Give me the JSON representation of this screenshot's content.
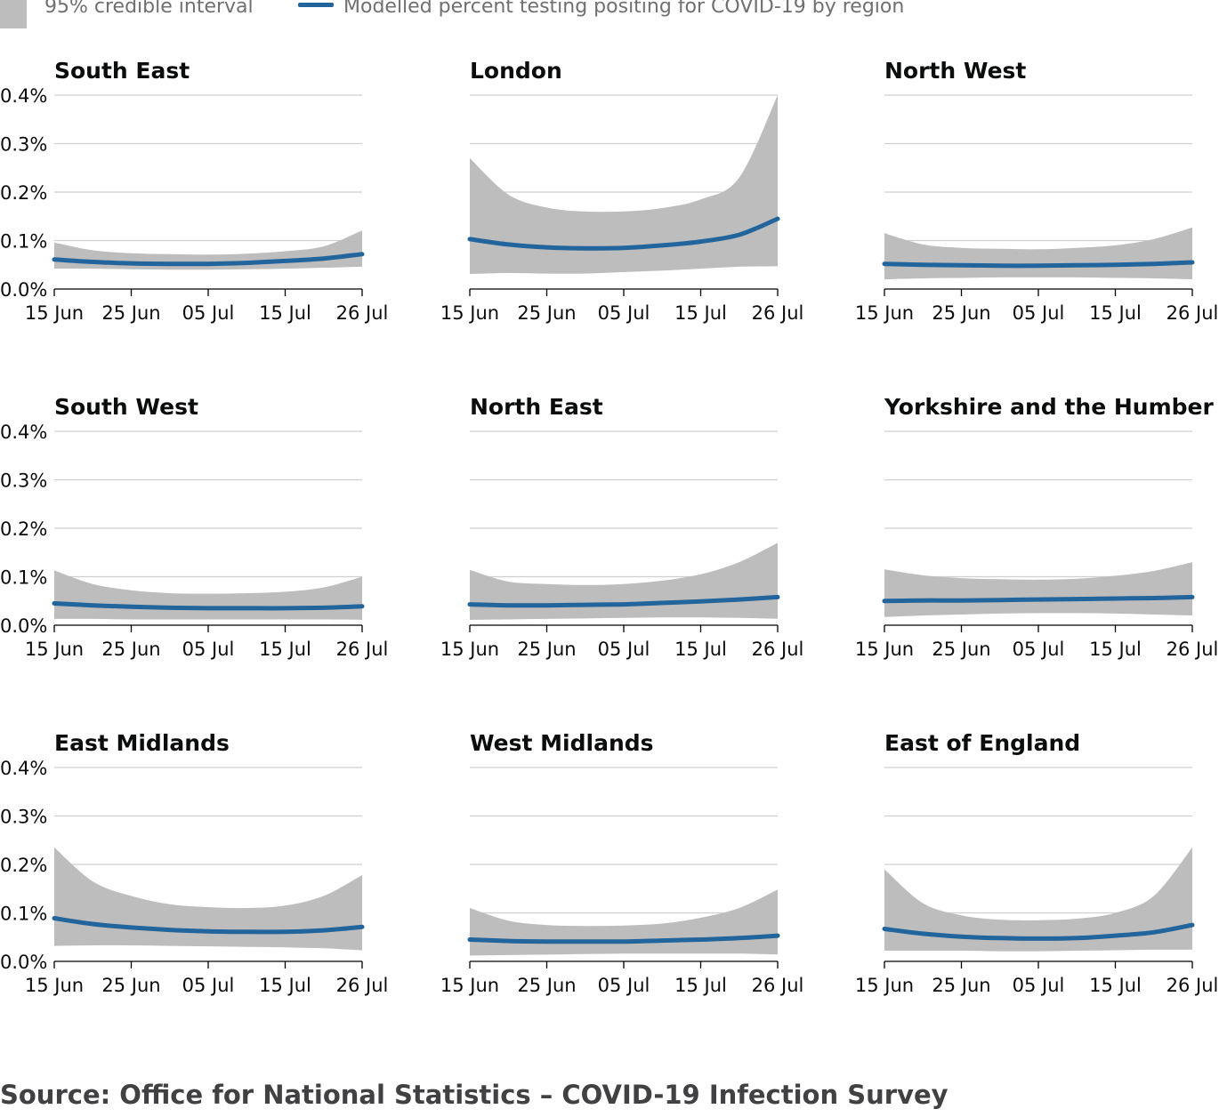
{
  "legend": {
    "interval_label": "95% credible interval",
    "line_label": "Modelled percent testing positing for COVID-19 by region"
  },
  "colors": {
    "interval": "#bdbdbd",
    "line": "#22649c",
    "grid": "#cfcfcf",
    "axis": "#000000"
  },
  "source": "Source: Office for National Statistics – COVID-19 Infection Survey",
  "chart_data": [
    {
      "type": "area",
      "title": "South East",
      "x": [
        "15 Jun",
        "20 Jun",
        "25 Jun",
        "30 Jun",
        "05 Jul",
        "10 Jul",
        "15 Jul",
        "20 Jul",
        "26 Jul"
      ],
      "series": [
        {
          "name": "Modelled percent testing positing for COVID-19 by region",
          "values": [
            0.061,
            0.056,
            0.053,
            0.052,
            0.052,
            0.054,
            0.058,
            0.063,
            0.072
          ]
        },
        {
          "name": "95% credible interval",
          "lower": [
            0.042,
            0.042,
            0.041,
            0.04,
            0.04,
            0.041,
            0.042,
            0.044,
            0.046
          ],
          "upper": [
            0.096,
            0.08,
            0.074,
            0.072,
            0.071,
            0.073,
            0.078,
            0.088,
            0.121
          ]
        }
      ],
      "xticks": [
        "15 Jun",
        "25 Jun",
        "05 Jul",
        "15 Jul",
        "26 Jul"
      ],
      "yticks": [
        "0.0%",
        "0.1%",
        "0.2%",
        "0.3%",
        "0.4%"
      ],
      "ylim": [
        0,
        0.4
      ],
      "grid": true
    },
    {
      "type": "area",
      "title": "London",
      "x": [
        "15 Jun",
        "20 Jun",
        "25 Jun",
        "30 Jun",
        "05 Jul",
        "10 Jul",
        "15 Jul",
        "20 Jul",
        "26 Jul"
      ],
      "series": [
        {
          "name": "Modelled percent testing positing for COVID-19 by region",
          "values": [
            0.103,
            0.092,
            0.086,
            0.084,
            0.085,
            0.09,
            0.098,
            0.112,
            0.145
          ]
        },
        {
          "name": "95% credible interval",
          "lower": [
            0.031,
            0.033,
            0.032,
            0.032,
            0.035,
            0.038,
            0.042,
            0.046,
            0.047
          ],
          "upper": [
            0.27,
            0.195,
            0.168,
            0.16,
            0.16,
            0.167,
            0.185,
            0.23,
            0.4
          ]
        }
      ],
      "xticks": [
        "15 Jun",
        "25 Jun",
        "05 Jul",
        "15 Jul",
        "26 Jul"
      ],
      "yticks": [],
      "ylim": [
        0,
        0.4
      ],
      "grid": true
    },
    {
      "type": "area",
      "title": "North West",
      "x": [
        "15 Jun",
        "20 Jun",
        "25 Jun",
        "30 Jun",
        "05 Jul",
        "10 Jul",
        "15 Jul",
        "20 Jul",
        "26 Jul"
      ],
      "series": [
        {
          "name": "Modelled percent testing positing for COVID-19 by region",
          "values": [
            0.052,
            0.05,
            0.049,
            0.048,
            0.048,
            0.049,
            0.05,
            0.052,
            0.055
          ]
        },
        {
          "name": "95% credible interval",
          "lower": [
            0.02,
            0.022,
            0.023,
            0.024,
            0.024,
            0.024,
            0.023,
            0.022,
            0.02
          ],
          "upper": [
            0.115,
            0.092,
            0.085,
            0.083,
            0.082,
            0.085,
            0.09,
            0.103,
            0.127
          ]
        }
      ],
      "xticks": [
        "15 Jun",
        "25 Jun",
        "05 Jul",
        "15 Jul",
        "26 Jul"
      ],
      "yticks": [],
      "ylim": [
        0,
        0.4
      ],
      "grid": true
    },
    {
      "type": "area",
      "title": "South West",
      "x": [
        "15 Jun",
        "20 Jun",
        "25 Jun",
        "30 Jun",
        "05 Jul",
        "10 Jul",
        "15 Jul",
        "20 Jul",
        "26 Jul"
      ],
      "series": [
        {
          "name": "Modelled percent testing positing for COVID-19 by region",
          "values": [
            0.045,
            0.041,
            0.038,
            0.036,
            0.035,
            0.035,
            0.035,
            0.036,
            0.039
          ]
        },
        {
          "name": "95% credible interval",
          "lower": [
            0.013,
            0.013,
            0.012,
            0.012,
            0.012,
            0.012,
            0.012,
            0.012,
            0.011
          ],
          "upper": [
            0.113,
            0.085,
            0.072,
            0.066,
            0.065,
            0.066,
            0.069,
            0.078,
            0.1
          ]
        }
      ],
      "xticks": [
        "15 Jun",
        "25 Jun",
        "05 Jul",
        "15 Jul",
        "26 Jul"
      ],
      "yticks": [
        "0.0%",
        "0.1%",
        "0.2%",
        "0.3%",
        "0.4%"
      ],
      "ylim": [
        0,
        0.4
      ],
      "grid": true
    },
    {
      "type": "area",
      "title": "North East",
      "x": [
        "15 Jun",
        "20 Jun",
        "25 Jun",
        "30 Jun",
        "05 Jul",
        "10 Jul",
        "15 Jul",
        "20 Jul",
        "26 Jul"
      ],
      "series": [
        {
          "name": "Modelled percent testing positing for COVID-19 by region",
          "values": [
            0.043,
            0.041,
            0.041,
            0.042,
            0.043,
            0.046,
            0.049,
            0.053,
            0.058
          ]
        },
        {
          "name": "95% credible interval",
          "lower": [
            0.011,
            0.012,
            0.013,
            0.014,
            0.015,
            0.016,
            0.016,
            0.015,
            0.013
          ],
          "upper": [
            0.114,
            0.09,
            0.085,
            0.083,
            0.085,
            0.092,
            0.105,
            0.13,
            0.17
          ]
        }
      ],
      "xticks": [
        "15 Jun",
        "25 Jun",
        "05 Jul",
        "15 Jul",
        "26 Jul"
      ],
      "yticks": [],
      "ylim": [
        0,
        0.4
      ],
      "grid": true
    },
    {
      "type": "area",
      "title": "Yorkshire and the Humber",
      "x": [
        "15 Jun",
        "20 Jun",
        "25 Jun",
        "30 Jun",
        "05 Jul",
        "10 Jul",
        "15 Jul",
        "20 Jul",
        "26 Jul"
      ],
      "series": [
        {
          "name": "Modelled percent testing positing for COVID-19 by region",
          "values": [
            0.05,
            0.051,
            0.051,
            0.052,
            0.053,
            0.054,
            0.055,
            0.056,
            0.058
          ]
        },
        {
          "name": "95% credible interval",
          "lower": [
            0.017,
            0.02,
            0.022,
            0.024,
            0.025,
            0.025,
            0.024,
            0.022,
            0.02
          ],
          "upper": [
            0.115,
            0.103,
            0.097,
            0.095,
            0.094,
            0.096,
            0.102,
            0.112,
            0.13
          ]
        }
      ],
      "xticks": [
        "15 Jun",
        "25 Jun",
        "05 Jul",
        "15 Jul",
        "26 Jul"
      ],
      "yticks": [],
      "ylim": [
        0,
        0.4
      ],
      "grid": true
    },
    {
      "type": "area",
      "title": "East Midlands",
      "x": [
        "15 Jun",
        "20 Jun",
        "25 Jun",
        "30 Jun",
        "05 Jul",
        "10 Jul",
        "15 Jul",
        "20 Jul",
        "26 Jul"
      ],
      "series": [
        {
          "name": "Modelled percent testing positing for COVID-19 by region",
          "values": [
            0.089,
            0.077,
            0.07,
            0.065,
            0.062,
            0.061,
            0.061,
            0.064,
            0.071
          ]
        },
        {
          "name": "95% credible interval",
          "lower": [
            0.032,
            0.033,
            0.033,
            0.032,
            0.031,
            0.03,
            0.029,
            0.027,
            0.023
          ],
          "upper": [
            0.235,
            0.165,
            0.135,
            0.118,
            0.112,
            0.11,
            0.115,
            0.135,
            0.178
          ]
        }
      ],
      "xticks": [
        "15 Jun",
        "25 Jun",
        "05 Jul",
        "15 Jul",
        "26 Jul"
      ],
      "yticks": [
        "0.0%",
        "0.1%",
        "0.2%",
        "0.3%",
        "0.4%"
      ],
      "ylim": [
        0,
        0.4
      ],
      "grid": true
    },
    {
      "type": "area",
      "title": "West Midlands",
      "x": [
        "15 Jun",
        "20 Jun",
        "25 Jun",
        "30 Jun",
        "05 Jul",
        "10 Jul",
        "15 Jul",
        "20 Jul",
        "26 Jul"
      ],
      "series": [
        {
          "name": "Modelled percent testing positing for COVID-19 by region",
          "values": [
            0.045,
            0.042,
            0.041,
            0.041,
            0.041,
            0.043,
            0.045,
            0.048,
            0.053
          ]
        },
        {
          "name": "95% credible interval",
          "lower": [
            0.012,
            0.013,
            0.014,
            0.015,
            0.016,
            0.016,
            0.016,
            0.016,
            0.014
          ],
          "upper": [
            0.11,
            0.084,
            0.075,
            0.073,
            0.074,
            0.078,
            0.09,
            0.11,
            0.148
          ]
        }
      ],
      "xticks": [
        "15 Jun",
        "25 Jun",
        "05 Jul",
        "15 Jul",
        "26 Jul"
      ],
      "yticks": [],
      "ylim": [
        0,
        0.4
      ],
      "grid": true
    },
    {
      "type": "area",
      "title": "East of England",
      "x": [
        "15 Jun",
        "20 Jun",
        "25 Jun",
        "30 Jun",
        "05 Jul",
        "10 Jul",
        "15 Jul",
        "20 Jul",
        "26 Jul"
      ],
      "series": [
        {
          "name": "Modelled percent testing positing for COVID-19 by region",
          "values": [
            0.067,
            0.057,
            0.051,
            0.048,
            0.047,
            0.048,
            0.053,
            0.06,
            0.075
          ]
        },
        {
          "name": "95% credible interval",
          "lower": [
            0.022,
            0.022,
            0.022,
            0.021,
            0.021,
            0.022,
            0.023,
            0.024,
            0.024
          ],
          "upper": [
            0.19,
            0.12,
            0.095,
            0.086,
            0.085,
            0.088,
            0.1,
            0.135,
            0.235
          ]
        }
      ],
      "xticks": [
        "15 Jun",
        "25 Jun",
        "05 Jul",
        "15 Jul",
        "26 Jul"
      ],
      "yticks": [],
      "ylim": [
        0,
        0.4
      ],
      "grid": true
    }
  ]
}
